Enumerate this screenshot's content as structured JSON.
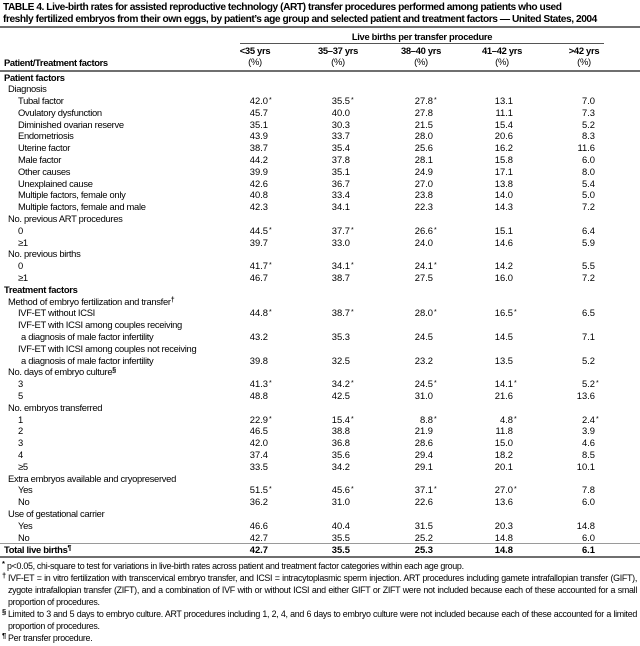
{
  "title": {
    "line1": "TABLE 4. Live-birth rates for assisted reproductive technology (ART) transfer procedures performed among patients who used",
    "line2": "freshly fertilized embryos from their own eggs, by patient’s age group and selected patient and treatment factors — United States, 2004"
  },
  "header": {
    "spanner": "Live births per transfer procedure",
    "row_label": "Patient/Treatment factors",
    "columns": [
      {
        "label": "<35 yrs",
        "unit": "(%)"
      },
      {
        "label": "35–37 yrs",
        "unit": "(%)"
      },
      {
        "label": "38–40 yrs",
        "unit": "(%)"
      },
      {
        "label": "41–42 yrs",
        "unit": "(%)"
      },
      {
        "label": ">42 yrs",
        "unit": "(%)"
      }
    ]
  },
  "table": {
    "rows": [
      {
        "type": "section",
        "label": "Patient factors"
      },
      {
        "type": "group",
        "label": "Diagnosis"
      },
      {
        "type": "item",
        "label": "Tubal factor",
        "v": [
          "42.0",
          "35.5",
          "27.8",
          "13.1",
          "7.0"
        ],
        "s": [
          "*",
          "*",
          "*",
          "",
          ""
        ]
      },
      {
        "type": "item",
        "label": "Ovulatory dysfunction",
        "v": [
          "45.7",
          "40.0",
          "27.8",
          "11.1",
          "7.3"
        ],
        "s": [
          "",
          "",
          "",
          "",
          ""
        ]
      },
      {
        "type": "item",
        "label": "Diminished ovarian reserve",
        "v": [
          "35.1",
          "30.3",
          "21.5",
          "15.4",
          "5.2"
        ],
        "s": [
          "",
          "",
          "",
          "",
          ""
        ]
      },
      {
        "type": "item",
        "label": "Endometriosis",
        "v": [
          "43.9",
          "33.7",
          "28.0",
          "20.6",
          "8.3"
        ],
        "s": [
          "",
          "",
          "",
          "",
          ""
        ]
      },
      {
        "type": "item",
        "label": "Uterine factor",
        "v": [
          "38.7",
          "35.4",
          "25.6",
          "16.2",
          "11.6"
        ],
        "s": [
          "",
          "",
          "",
          "",
          ""
        ]
      },
      {
        "type": "item",
        "label": "Male factor",
        "v": [
          "44.2",
          "37.8",
          "28.1",
          "15.8",
          "6.0"
        ],
        "s": [
          "",
          "",
          "",
          "",
          ""
        ]
      },
      {
        "type": "item",
        "label": "Other causes",
        "v": [
          "39.9",
          "35.1",
          "24.9",
          "17.1",
          "8.0"
        ],
        "s": [
          "",
          "",
          "",
          "",
          ""
        ]
      },
      {
        "type": "item",
        "label": "Unexplained cause",
        "v": [
          "42.6",
          "36.7",
          "27.0",
          "13.8",
          "5.4"
        ],
        "s": [
          "",
          "",
          "",
          "",
          ""
        ]
      },
      {
        "type": "item",
        "label": "Multiple factors, female only",
        "v": [
          "40.8",
          "33.4",
          "23.8",
          "14.0",
          "5.0"
        ],
        "s": [
          "",
          "",
          "",
          "",
          ""
        ]
      },
      {
        "type": "item",
        "label": "Multiple factors, female and male",
        "v": [
          "42.3",
          "34.1",
          "22.3",
          "14.3",
          "7.2"
        ],
        "s": [
          "",
          "",
          "",
          "",
          ""
        ]
      },
      {
        "type": "group",
        "label": "No. previous ART procedures"
      },
      {
        "type": "item",
        "label": "0",
        "v": [
          "44.5",
          "37.7",
          "26.6",
          "15.1",
          "6.4"
        ],
        "s": [
          "*",
          "*",
          "*",
          "",
          ""
        ]
      },
      {
        "type": "item",
        "label": "≥1",
        "v": [
          "39.7",
          "33.0",
          "24.0",
          "14.6",
          "5.9"
        ],
        "s": [
          "",
          "",
          "",
          "",
          ""
        ]
      },
      {
        "type": "group",
        "label": "No. previous births"
      },
      {
        "type": "item",
        "label": "0",
        "v": [
          "41.7",
          "34.1",
          "24.1",
          "14.2",
          "5.5"
        ],
        "s": [
          "*",
          "*",
          "*",
          "",
          ""
        ]
      },
      {
        "type": "item",
        "label": "≥1",
        "v": [
          "46.7",
          "38.7",
          "27.5",
          "16.0",
          "7.2"
        ],
        "s": [
          "",
          "",
          "",
          "",
          ""
        ]
      },
      {
        "type": "section",
        "label": "Treatment factors"
      },
      {
        "type": "group",
        "label": "Method of embryo fertilization and transfer",
        "note": "†"
      },
      {
        "type": "item",
        "label": "IVF-ET without ICSI",
        "v": [
          "44.8",
          "38.7",
          "28.0",
          "16.5",
          "6.5"
        ],
        "s": [
          "*",
          "*",
          "*",
          "*",
          ""
        ]
      },
      {
        "type": "item",
        "label": "IVF-ET with ICSI among couples receiving",
        "label2": "a diagnosis of male factor infertility",
        "v": [
          "43.2",
          "35.3",
          "24.5",
          "14.5",
          "7.1"
        ],
        "s": [
          "",
          "",
          "",
          "",
          ""
        ]
      },
      {
        "type": "item",
        "label": "IVF-ET with ICSI among couples not receiving",
        "label2": "a diagnosis of male factor infertility",
        "v": [
          "39.8",
          "32.5",
          "23.2",
          "13.5",
          "5.2"
        ],
        "s": [
          "",
          "",
          "",
          "",
          ""
        ]
      },
      {
        "type": "group",
        "label": "No. days of embryo culture",
        "note": "§"
      },
      {
        "type": "item",
        "label": "3",
        "v": [
          "41.3",
          "34.2",
          "24.5",
          "14.1",
          "5.2"
        ],
        "s": [
          "*",
          "*",
          "*",
          "*",
          "*"
        ]
      },
      {
        "type": "item",
        "label": "5",
        "v": [
          "48.8",
          "42.5",
          "31.0",
          "21.6",
          "13.6"
        ],
        "s": [
          "",
          "",
          "",
          "",
          ""
        ]
      },
      {
        "type": "group",
        "label": "No. embryos transferred"
      },
      {
        "type": "item",
        "label": "1",
        "v": [
          "22.9",
          "15.4",
          "8.8",
          "4.8",
          "2.4"
        ],
        "s": [
          "*",
          "*",
          "*",
          "*",
          "*"
        ]
      },
      {
        "type": "item",
        "label": "2",
        "v": [
          "46.5",
          "38.8",
          "21.9",
          "11.8",
          "3.9"
        ],
        "s": [
          "",
          "",
          "",
          "",
          ""
        ]
      },
      {
        "type": "item",
        "label": "3",
        "v": [
          "42.0",
          "36.8",
          "28.6",
          "15.0",
          "4.6"
        ],
        "s": [
          "",
          "",
          "",
          "",
          ""
        ]
      },
      {
        "type": "item",
        "label": "4",
        "v": [
          "37.4",
          "35.6",
          "29.4",
          "18.2",
          "8.5"
        ],
        "s": [
          "",
          "",
          "",
          "",
          ""
        ]
      },
      {
        "type": "item",
        "label": "≥5",
        "v": [
          "33.5",
          "34.2",
          "29.1",
          "20.1",
          "10.1"
        ],
        "s": [
          "",
          "",
          "",
          "",
          ""
        ]
      },
      {
        "type": "group",
        "label": "Extra embryos available and cryopreserved"
      },
      {
        "type": "item",
        "label": "Yes",
        "v": [
          "51.5",
          "45.6",
          "37.1",
          "27.0",
          "7.8"
        ],
        "s": [
          "*",
          "*",
          "*",
          "*",
          ""
        ]
      },
      {
        "type": "item",
        "label": "No",
        "v": [
          "36.2",
          "31.0",
          "22.6",
          "13.6",
          "6.0"
        ],
        "s": [
          "",
          "",
          "",
          "",
          ""
        ]
      },
      {
        "type": "group",
        "label": "Use of gestational carrier"
      },
      {
        "type": "item",
        "label": "Yes",
        "v": [
          "46.6",
          "40.4",
          "31.5",
          "20.3",
          "14.8"
        ],
        "s": [
          "",
          "",
          "",
          "",
          ""
        ]
      },
      {
        "type": "item",
        "label": "No",
        "v": [
          "42.7",
          "35.5",
          "25.2",
          "14.8",
          "6.0"
        ],
        "s": [
          "",
          "",
          "",
          "",
          ""
        ]
      },
      {
        "type": "total",
        "label": "Total live births",
        "note": "¶",
        "v": [
          "42.7",
          "35.5",
          "25.3",
          "14.8",
          "6.1"
        ],
        "s": [
          "",
          "",
          "",
          "",
          ""
        ]
      }
    ]
  },
  "footnotes": [
    {
      "symbol": "*",
      "text": "p<0.05, chi-square to test for variations in live-birth rates across patient and treatment factor categories within each age group."
    },
    {
      "symbol": "†",
      "text": "IVF-ET = in vitro fertilization with transcervical embryo transfer, and ICSI = intracytoplasmic sperm injection. ART procedures including gamete intrafallopian transfer (GIFT), zygote intrafallopian transfer (ZIFT), and a combination of IVF with or without ICSI and either GIFT or ZIFT were not included because each of these accounted for a small proportion of procedures."
    },
    {
      "symbol": "§",
      "text": "Limited to 3 and 5 days to embryo culture. ART procedures including 1, 2, 4, and 6 days to embryo culture were not included because each of these accounted for a limited proportion of procedures."
    },
    {
      "symbol": "¶",
      "text": "Per transfer procedure."
    }
  ]
}
